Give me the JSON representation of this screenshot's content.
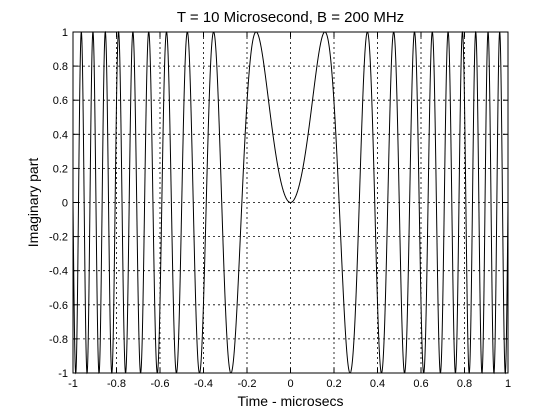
{
  "chart_data": {
    "type": "line",
    "title": "T = 10 Microsecond, B = 200 MHz",
    "xlabel": "Time - microsecs",
    "ylabel": "Imaginary part",
    "xlim": [
      -1,
      1
    ],
    "ylim": [
      -1,
      1
    ],
    "x_ticks": [
      -1,
      -0.8,
      -0.6,
      -0.4,
      -0.2,
      0,
      0.2,
      0.4,
      0.6,
      0.8,
      1
    ],
    "x_tick_labels": [
      "-1",
      "-0.8",
      "-0.6",
      "-0.4",
      "-0.2",
      "0",
      "0.2",
      "0.4",
      "0.6",
      "0.8",
      "1"
    ],
    "y_ticks": [
      -1,
      -0.8,
      -0.6,
      -0.4,
      -0.2,
      0,
      0.2,
      0.4,
      0.6,
      0.8,
      1
    ],
    "y_tick_labels": [
      "-1",
      "-0.8",
      "-0.6",
      "-0.4",
      "-0.2",
      "0",
      "0.2",
      "0.4",
      "0.6",
      "0.8",
      "1"
    ],
    "grid": true,
    "grid_style": "dotted",
    "series": [
      {
        "function": "sin(pi * (B/T) * t^2)",
        "parameters": {
          "T_microseconds": 10,
          "B_MHz": 200
        },
        "x_range": [
          -1,
          1
        ],
        "samples": 4000,
        "color": "#000000"
      }
    ]
  }
}
